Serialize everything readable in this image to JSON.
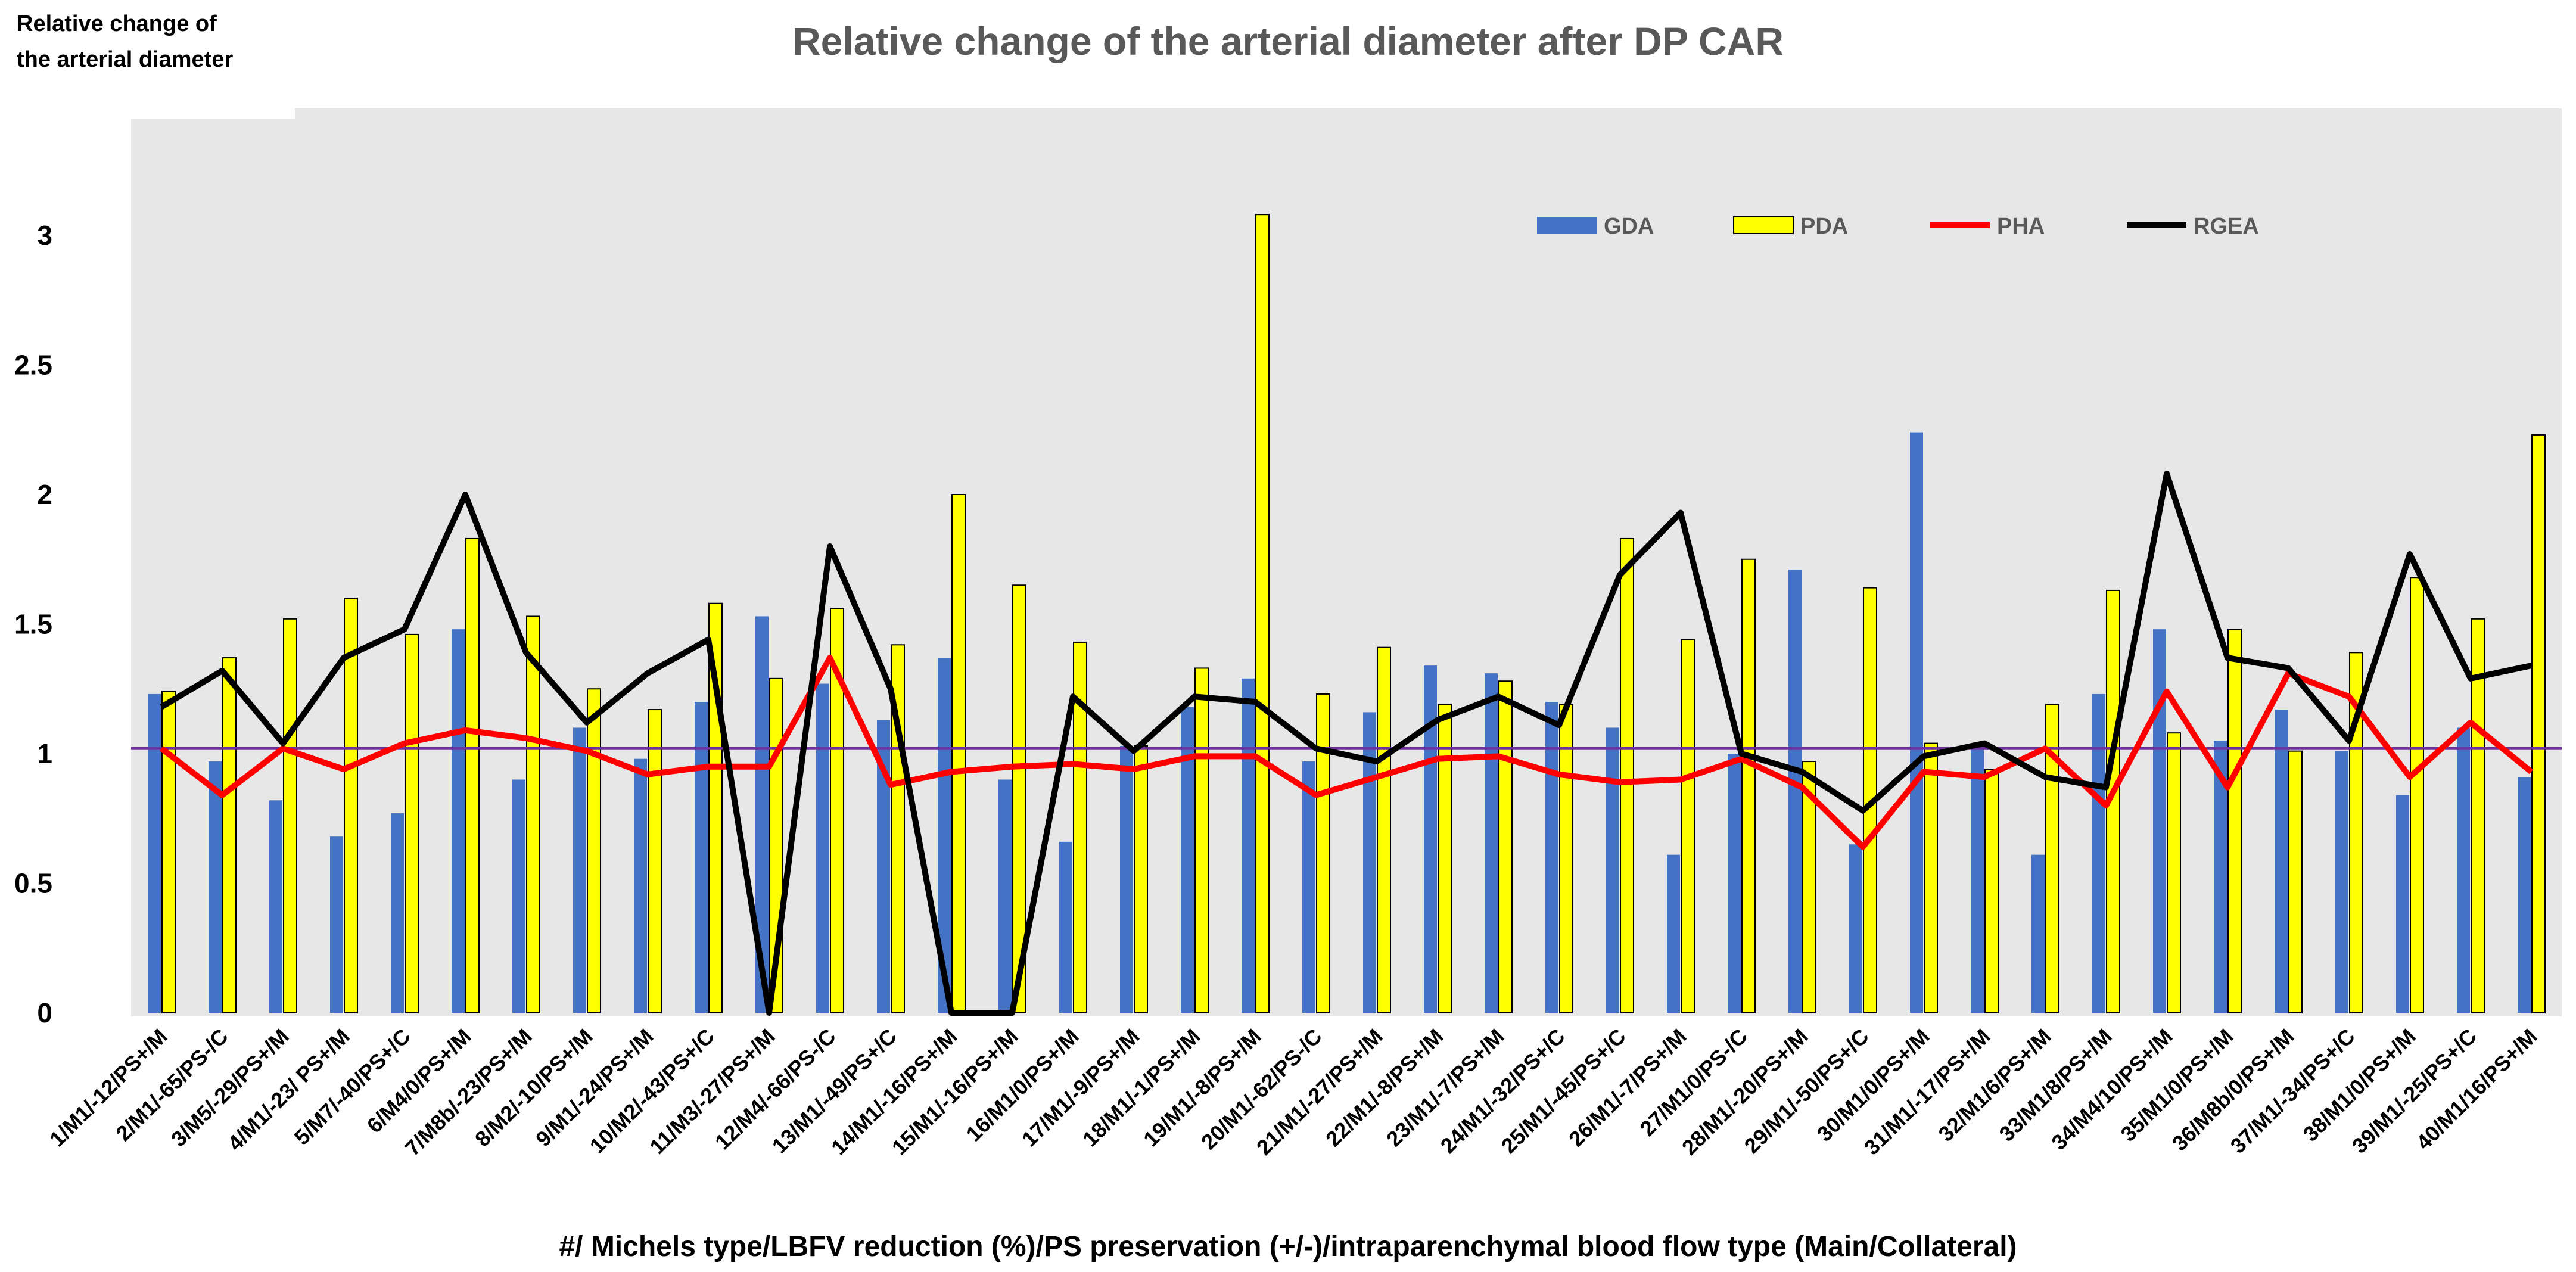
{
  "chart_data": {
    "type": "bar",
    "title": "Relative change of the arterial diameter after DP CAR",
    "ylabel_line1": "Relative change of",
    "ylabel_line2": "the arterial diameter",
    "xlabel": "#/ Michels type/LBFV reduction (%)/PS preservation (+/-)/intraparenchymal blood flow type (Main/Collateral)",
    "ylim": [
      0,
      3.5
    ],
    "yticks": [
      0,
      0.5,
      1,
      1.5,
      2,
      2.5,
      3
    ],
    "ytick_labels": [
      "0",
      "0.5",
      "1",
      "1.5",
      "2",
      "2.5",
      "3"
    ],
    "grid": false,
    "legend_position": "top-right",
    "reference_line": 1.02,
    "categories": [
      "1/M1/-12/PS+/M",
      "2/M1/-65/PS-/C",
      "3/M5/-29/PS+/M",
      "4/M1/-23/ PS+/M",
      "5/M7/-40/PS+/C",
      "6/M4/0/PS+/M",
      "7/M8b/-23/PS+/M",
      "8/M2/-10/PS+/M",
      "9/M1/-24/PS+/M",
      "10/M2/-43/PS+/C",
      "11/M3/-27/PS+/M",
      "12/M4/-66/PS-/C",
      "13/M1/-49/PS+/C",
      "14/M1/-16/PS+/M",
      "15/M1/-16/PS+/M",
      "16/M1/0/PS+/M",
      "17/M1/-9/PS+/M",
      "18/M1/-1/PS+/M",
      "19/M1/-8/PS+/M",
      "20/M1/-62/PS-/C",
      "21/M1/-27/PS+/M",
      "22/M1/-8/PS+/M",
      "23/M1/-7/PS+/M",
      "24/M1/-32/PS+/C",
      "25/M1/-45/PS+/C",
      "26/M1/-7/PS+/M",
      "27/M1/0/PS-/C",
      "28/M1/-20/PS+/M",
      "29/M1/-50/PS+/C",
      "30/M1/0/PS+/M",
      "31/M1/-17/PS+/M",
      "32/M1/6/PS+/M",
      "33/M1/8/PS+/M",
      "34/M4/10/PS+/M",
      "35/M1/0/PS+/M",
      "36/M8b/0/PS+/M",
      "37/M1/-34/PS+/C",
      "38/M1/0/PS+/M",
      "39/M1/-25/PS+/C",
      "40/M1/16/PS+/M"
    ],
    "series": [
      {
        "name": "GDA",
        "kind": "bar",
        "color": "#4472C4",
        "values": [
          1.23,
          0.97,
          0.82,
          0.68,
          0.77,
          1.48,
          0.9,
          1.1,
          0.98,
          1.2,
          1.53,
          1.27,
          1.13,
          1.37,
          0.9,
          0.66,
          1.03,
          1.18,
          1.29,
          0.97,
          1.16,
          1.34,
          1.31,
          1.2,
          1.1,
          0.61,
          1.0,
          1.71,
          0.65,
          2.24,
          1.03,
          0.61,
          1.23,
          1.48,
          1.05,
          1.17,
          1.01,
          0.84,
          1.1,
          0.91
        ]
      },
      {
        "name": "PDA",
        "kind": "bar",
        "color": "#FFFF00",
        "values": [
          1.24,
          1.37,
          1.52,
          1.6,
          1.46,
          1.83,
          1.53,
          1.25,
          1.17,
          1.58,
          1.29,
          1.56,
          1.42,
          2.0,
          1.65,
          1.43,
          1.03,
          1.33,
          3.08,
          1.23,
          1.41,
          1.19,
          1.28,
          1.19,
          1.83,
          1.44,
          1.75,
          0.97,
          1.64,
          1.04,
          0.94,
          1.19,
          1.63,
          1.08,
          1.48,
          1.01,
          1.39,
          1.68,
          1.52,
          2.23
        ]
      },
      {
        "name": "PHA",
        "kind": "line",
        "color": "#FF0000",
        "values": [
          1.02,
          0.84,
          1.02,
          0.94,
          1.04,
          1.09,
          1.06,
          1.01,
          0.92,
          0.95,
          0.95,
          1.37,
          0.88,
          0.93,
          0.95,
          0.96,
          0.94,
          0.99,
          0.99,
          0.84,
          0.91,
          0.98,
          0.99,
          0.92,
          0.89,
          0.9,
          0.98,
          0.87,
          0.64,
          0.93,
          0.91,
          1.02,
          0.8,
          1.24,
          0.87,
          1.31,
          1.22,
          0.91,
          1.12,
          0.93
        ]
      },
      {
        "name": "RGEA",
        "kind": "line",
        "color": "#000000",
        "values": [
          1.18,
          1.32,
          1.04,
          1.37,
          1.48,
          2.0,
          1.39,
          1.12,
          1.31,
          1.44,
          0.0,
          1.8,
          1.25,
          0.0,
          0.0,
          1.22,
          1.01,
          1.22,
          1.2,
          1.02,
          0.97,
          1.13,
          1.22,
          1.11,
          1.69,
          1.93,
          1.0,
          0.93,
          0.78,
          0.99,
          1.04,
          0.91,
          0.87,
          2.08,
          1.37,
          1.33,
          1.05,
          1.77,
          1.29,
          1.34
        ]
      }
    ]
  }
}
